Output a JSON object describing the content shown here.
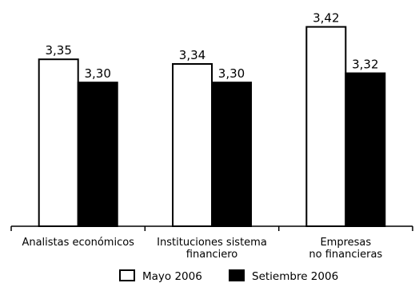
{
  "chart_data": {
    "type": "bar",
    "categories": [
      [
        "Analistas económicos"
      ],
      [
        "Instituciones sistema",
        "financiero"
      ],
      [
        "Empresas",
        "no financieras"
      ]
    ],
    "series": [
      {
        "name": "Mayo 2006",
        "values": [
          3.35,
          3.34,
          3.42
        ],
        "labels": [
          "3,35",
          "3,34",
          "3,42"
        ],
        "fill": "#ffffff",
        "stroke": "#000000"
      },
      {
        "name": "Setiembre 2006",
        "values": [
          3.3,
          3.3,
          3.32
        ],
        "labels": [
          "3,30",
          "3,30",
          "3,32"
        ],
        "fill": "#000000",
        "stroke": "#000000"
      }
    ],
    "grid": false,
    "legend_position": "bottom"
  }
}
